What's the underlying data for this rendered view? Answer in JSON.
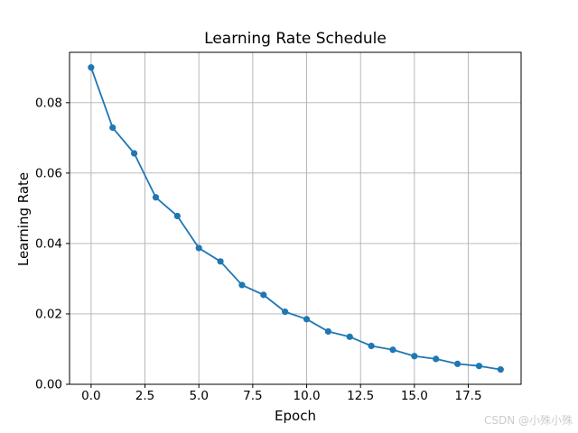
{
  "chart_data": {
    "type": "line",
    "title": "Learning Rate Schedule",
    "xlabel": "Epoch",
    "ylabel": "Learning Rate",
    "x": [
      0,
      1,
      2,
      3,
      4,
      5,
      6,
      7,
      8,
      9,
      10,
      11,
      12,
      13,
      14,
      15,
      16,
      17,
      18,
      19
    ],
    "series": [
      {
        "name": "Learning Rate",
        "values": [
          0.09,
          0.0729,
          0.0656,
          0.0531,
          0.0478,
          0.0387,
          0.0349,
          0.0282,
          0.0254,
          0.0206,
          0.0185,
          0.015,
          0.0135,
          0.0109,
          0.0098,
          0.008,
          0.0072,
          0.0058,
          0.0052,
          0.0042
        ]
      }
    ],
    "xlim": [
      -1.0,
      19.95
    ],
    "ylim": [
      0,
      0.0943
    ],
    "xticks": {
      "values": [
        0,
        2.5,
        5,
        7.5,
        10,
        12.5,
        15,
        17.5
      ],
      "labels": [
        "0.0",
        "2.5",
        "5.0",
        "7.5",
        "10.0",
        "12.5",
        "15.0",
        "17.5"
      ]
    },
    "yticks": {
      "values": [
        0,
        0.02,
        0.04,
        0.06,
        0.08
      ],
      "labels": [
        "0.00",
        "0.02",
        "0.04",
        "0.06",
        "0.08"
      ]
    },
    "grid": true,
    "legend_position": "none",
    "marker": "o"
  },
  "colors": {
    "line": "#1f77b4",
    "grid": "#b0b0b0",
    "spine": "#000000",
    "text": "#000000",
    "watermark": "#cccccc"
  },
  "watermark": {
    "text": "CSDN @小殊小殊"
  }
}
